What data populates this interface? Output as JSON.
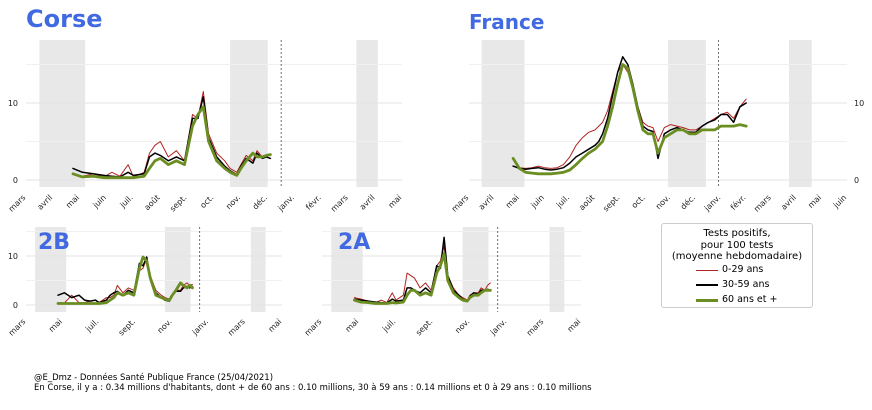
{
  "months": [
    "mars",
    "avril",
    "mai",
    "juin",
    "juil.",
    "août",
    "sept.",
    "oct.",
    "nov.",
    "déc.",
    "janv.",
    "févr.",
    "mars",
    "avril",
    "mai",
    "juin"
  ],
  "months_short": [
    "mars",
    "mai",
    "juil.",
    "sept.",
    "nov.",
    "janv.",
    "mars",
    "mai"
  ],
  "colors": {
    "c0_29": "#b22222",
    "c30_59": "#000000",
    "c60": "#6b8e23",
    "shade": "#e8e8e8",
    "title": "#4169e1"
  },
  "legend": {
    "title_lines": [
      "Tests positifs,",
      "pour 100 tests",
      "(moyenne hebdomadaire)"
    ],
    "items": [
      "0-29 ans",
      "30-59 ans",
      "60 ans et +"
    ]
  },
  "footer": {
    "line1": "@E_Dmz - Données Santé Publique France (25/04/2021)",
    "line2": "En Corse, il y a : 0.34 millions d'habitants, dont + de 60 ans : 0.10 millions, 30 à 59 ans : 0.14 millions et 0 à 29 ans : 0.10 millions"
  },
  "chart_data": [
    {
      "type": "line",
      "title": "Corse",
      "ylim": [
        0,
        18
      ],
      "yticks": [
        0,
        10
      ],
      "series": [
        {
          "name": "0-29 ans",
          "x": [
            3.5,
            4.2,
            5.0,
            5.8,
            6.4,
            7.0,
            7.6,
            8.0,
            8.8,
            9.2,
            9.6,
            10.0,
            10.6,
            11.2,
            11.8,
            12.4,
            12.8,
            13.2,
            13.6,
            14.2,
            14.8,
            15.2,
            15.7,
            16.0,
            16.4,
            16.9,
            17.2,
            17.6,
            17.9,
            18.2
          ],
          "y": [
            0.8,
            0.5,
            0.8,
            0.4,
            1.0,
            0.5,
            2.0,
            0.4,
            1.0,
            3.5,
            4.5,
            5.0,
            3.0,
            3.8,
            2.5,
            8.5,
            8.0,
            11.5,
            6.0,
            3.5,
            2.5,
            1.5,
            1.0,
            2.0,
            3.2,
            2.5,
            3.8,
            3.0,
            3.0,
            2.8
          ]
        },
        {
          "name": "30-59 ans",
          "x": [
            3.5,
            4.2,
            5.0,
            5.8,
            6.4,
            7.0,
            7.6,
            8.0,
            8.8,
            9.2,
            9.6,
            10.0,
            10.6,
            11.2,
            11.8,
            12.4,
            12.8,
            13.2,
            13.6,
            14.2,
            14.8,
            15.2,
            15.7,
            16.0,
            16.4,
            16.9,
            17.2,
            17.6,
            17.9,
            18.2
          ],
          "y": [
            1.5,
            1.0,
            0.8,
            0.6,
            0.5,
            0.4,
            1.0,
            0.6,
            0.8,
            3.0,
            3.5,
            3.2,
            2.5,
            3.0,
            2.5,
            8.0,
            8.0,
            10.8,
            5.5,
            3.0,
            1.8,
            1.2,
            0.7,
            1.8,
            2.8,
            2.2,
            3.5,
            2.8,
            3.0,
            2.8
          ]
        },
        {
          "name": "60 ans et +",
          "x": [
            3.5,
            4.2,
            5.0,
            5.8,
            6.4,
            7.0,
            7.6,
            8.0,
            8.8,
            9.2,
            9.6,
            10.0,
            10.6,
            11.2,
            11.8,
            12.4,
            12.8,
            13.2,
            13.6,
            14.2,
            14.8,
            15.2,
            15.7,
            16.0,
            16.4,
            16.9,
            17.2,
            17.6,
            17.9,
            18.2
          ],
          "y": [
            0.8,
            0.4,
            0.5,
            0.3,
            0.3,
            0.3,
            0.3,
            0.3,
            0.5,
            1.5,
            2.5,
            2.8,
            2.0,
            2.5,
            2.0,
            7.0,
            8.5,
            9.5,
            5.0,
            2.5,
            1.5,
            1.0,
            0.6,
            1.5,
            2.5,
            3.5,
            3.0,
            3.0,
            3.2,
            3.3
          ]
        }
      ]
    },
    {
      "type": "line",
      "title": "France",
      "ylim": [
        0,
        18
      ],
      "yticks": [
        0,
        10
      ],
      "series": [
        {
          "name": "0-29 ans",
          "x": [
            3.5,
            4.0,
            4.5,
            5.0,
            5.5,
            6.0,
            6.5,
            7.0,
            7.5,
            8.0,
            8.5,
            9.0,
            9.5,
            10.0,
            10.3,
            10.6,
            11.0,
            11.4,
            11.8,
            12.2,
            12.6,
            13.0,
            13.4,
            13.8,
            14.2,
            14.6,
            15.0,
            15.5,
            16.0,
            16.5,
            17.0,
            17.5,
            18.0,
            18.5,
            19.0,
            19.5,
            20.0,
            20.5,
            21.0,
            21.5,
            22.0
          ],
          "y": [
            1.8,
            1.6,
            1.5,
            1.6,
            1.8,
            1.6,
            1.5,
            1.6,
            2.0,
            3.0,
            4.5,
            5.5,
            6.2,
            6.5,
            7.0,
            7.5,
            9.0,
            11.5,
            14.0,
            15.0,
            14.0,
            12.0,
            9.5,
            7.5,
            7.0,
            6.8,
            5.0,
            6.8,
            7.2,
            7.0,
            6.8,
            6.5,
            6.5,
            7.0,
            7.5,
            8.0,
            8.5,
            8.8,
            8.0,
            9.5,
            10.5
          ]
        },
        {
          "name": "30-59 ans",
          "x": [
            3.5,
            4.0,
            4.5,
            5.0,
            5.5,
            6.0,
            6.5,
            7.0,
            7.5,
            8.0,
            8.5,
            9.0,
            9.5,
            10.0,
            10.3,
            10.6,
            11.0,
            11.4,
            11.8,
            12.2,
            12.6,
            13.0,
            13.4,
            13.8,
            14.2,
            14.6,
            15.0,
            15.5,
            16.0,
            16.5,
            17.0,
            17.5,
            18.0,
            18.5,
            19.0,
            19.5,
            20.0,
            20.5,
            21.0,
            21.5,
            22.0
          ],
          "y": [
            1.8,
            1.5,
            1.4,
            1.5,
            1.6,
            1.4,
            1.3,
            1.4,
            1.6,
            2.2,
            3.0,
            3.5,
            4.0,
            4.5,
            5.0,
            6.0,
            8.0,
            11.0,
            14.0,
            16.0,
            15.0,
            12.5,
            9.5,
            7.0,
            6.5,
            6.3,
            2.8,
            6.0,
            6.5,
            6.8,
            6.5,
            6.2,
            6.2,
            7.0,
            7.5,
            7.8,
            8.5,
            8.5,
            7.5,
            9.5,
            10.0
          ]
        },
        {
          "name": "60 ans et +",
          "x": [
            3.5,
            4.0,
            4.5,
            5.0,
            5.5,
            6.0,
            6.5,
            7.0,
            7.5,
            8.0,
            8.5,
            9.0,
            9.5,
            10.0,
            10.3,
            10.6,
            11.0,
            11.4,
            11.8,
            12.2,
            12.6,
            13.0,
            13.4,
            13.8,
            14.2,
            14.6,
            15.0,
            15.5,
            16.0,
            16.5,
            17.0,
            17.5,
            18.0,
            18.5,
            19.0,
            19.5,
            20.0,
            20.5,
            21.0,
            21.5,
            22.0
          ],
          "y": [
            2.8,
            1.5,
            1.0,
            0.9,
            0.8,
            0.8,
            0.8,
            0.9,
            1.0,
            1.3,
            2.0,
            2.8,
            3.5,
            4.0,
            4.5,
            5.0,
            7.0,
            9.5,
            12.5,
            15.0,
            14.5,
            12.0,
            9.0,
            6.5,
            6.0,
            6.0,
            3.5,
            5.5,
            6.0,
            6.5,
            6.5,
            6.0,
            6.0,
            6.5,
            6.5,
            6.5,
            7.0,
            7.0,
            7.0,
            7.2,
            7.0
          ]
        }
      ]
    },
    {
      "type": "line",
      "title": "2B",
      "ylim": [
        0,
        14
      ],
      "yticks": [
        0,
        10
      ],
      "series": [
        {
          "name": "0-29 ans",
          "x": [
            3.5,
            4.2,
            5.0,
            5.8,
            6.4,
            7.0,
            7.6,
            8.0,
            8.8,
            9.2,
            9.6,
            10.0,
            10.6,
            11.2,
            11.8,
            12.4,
            12.8,
            13.2,
            13.6,
            14.2,
            14.8,
            15.2,
            15.7,
            16.0,
            16.4,
            16.9,
            17.2,
            17.6,
            17.9,
            18.2
          ],
          "y": [
            0.5,
            0.4,
            2.0,
            0.5,
            0.5,
            0.8,
            1.0,
            0.5,
            1.5,
            1.5,
            2.0,
            4.0,
            2.5,
            3.5,
            3.0,
            7.0,
            7.5,
            9.5,
            6.0,
            3.0,
            2.0,
            1.5,
            1.2,
            2.0,
            3.0,
            3.0,
            4.0,
            4.5,
            4.0,
            4.2
          ]
        },
        {
          "name": "30-59 ans",
          "x": [
            3.5,
            4.2,
            5.0,
            5.8,
            6.4,
            7.0,
            7.6,
            8.0,
            8.8,
            9.2,
            9.6,
            10.0,
            10.6,
            11.2,
            11.8,
            12.4,
            12.8,
            13.2,
            13.6,
            14.2,
            14.8,
            15.2,
            15.7,
            16.0,
            16.4,
            16.9,
            17.2,
            17.6,
            17.9,
            18.2
          ],
          "y": [
            2.0,
            2.5,
            1.5,
            2.0,
            1.0,
            0.8,
            1.0,
            0.5,
            1.0,
            2.0,
            2.5,
            2.8,
            2.0,
            3.0,
            2.5,
            8.5,
            8.0,
            9.8,
            5.5,
            2.5,
            1.5,
            1.0,
            0.8,
            2.0,
            2.8,
            2.8,
            3.5,
            3.8,
            3.5,
            3.8
          ]
        },
        {
          "name": "60 ans et +",
          "x": [
            3.5,
            4.2,
            5.0,
            5.8,
            6.4,
            7.0,
            7.6,
            8.0,
            8.8,
            9.2,
            9.6,
            10.0,
            10.6,
            11.2,
            11.8,
            12.4,
            12.8,
            13.2,
            13.6,
            14.2,
            14.8,
            15.2,
            15.7,
            16.0,
            16.4,
            16.9,
            17.2,
            17.6,
            17.9,
            18.2
          ],
          "y": [
            0.3,
            0.3,
            0.3,
            0.3,
            0.3,
            0.3,
            0.3,
            0.3,
            0.5,
            1.0,
            1.5,
            2.5,
            2.0,
            2.5,
            2.0,
            7.5,
            9.8,
            9.0,
            5.5,
            2.0,
            1.5,
            1.2,
            1.0,
            2.0,
            3.0,
            4.5,
            4.0,
            3.5,
            4.0,
            3.5
          ]
        }
      ]
    },
    {
      "type": "line",
      "title": "2A",
      "ylim": [
        0,
        14
      ],
      "yticks": [
        0,
        10
      ],
      "series": [
        {
          "name": "0-29 ans",
          "x": [
            3.5,
            4.2,
            5.0,
            5.8,
            6.4,
            7.0,
            7.6,
            8.0,
            8.8,
            9.2,
            9.6,
            10.0,
            10.6,
            11.2,
            11.8,
            12.4,
            12.8,
            13.2,
            13.6,
            14.2,
            14.8,
            15.2,
            15.7,
            16.0,
            16.4,
            16.9,
            17.2,
            17.6,
            17.9,
            18.2
          ],
          "y": [
            1.5,
            1.2,
            0.8,
            0.5,
            1.0,
            0.5,
            2.5,
            1.0,
            2.0,
            6.5,
            6.0,
            5.5,
            3.5,
            4.5,
            3.0,
            8.0,
            9.0,
            12.0,
            6.0,
            3.5,
            2.0,
            1.5,
            1.0,
            2.0,
            2.5,
            2.5,
            3.5,
            3.0,
            4.0,
            4.5
          ]
        },
        {
          "name": "30-59 ans",
          "x": [
            3.5,
            4.2,
            5.0,
            5.8,
            6.4,
            7.0,
            7.6,
            8.0,
            8.8,
            9.2,
            9.6,
            10.0,
            10.6,
            11.2,
            11.8,
            12.4,
            12.8,
            13.2,
            13.6,
            14.2,
            14.8,
            15.2,
            15.7,
            16.0,
            16.4,
            16.9,
            17.2,
            17.6,
            17.9,
            18.2
          ],
          "y": [
            1.2,
            1.0,
            0.8,
            0.6,
            0.5,
            0.4,
            1.2,
            0.8,
            1.0,
            3.5,
            3.5,
            3.0,
            2.5,
            3.5,
            2.5,
            8.0,
            7.5,
            13.8,
            6.0,
            3.0,
            2.0,
            1.2,
            0.8,
            1.8,
            2.5,
            2.2,
            3.0,
            3.0,
            3.2,
            3.0
          ]
        },
        {
          "name": "60 ans et +",
          "x": [
            3.5,
            4.2,
            5.0,
            5.8,
            6.4,
            7.0,
            7.6,
            8.0,
            8.8,
            9.2,
            9.6,
            10.0,
            10.6,
            11.2,
            11.8,
            12.4,
            12.8,
            13.2,
            13.6,
            14.2,
            14.8,
            15.2,
            15.7,
            16.0,
            16.4,
            16.9,
            17.2,
            17.6,
            17.9,
            18.2
          ],
          "y": [
            1.0,
            0.6,
            0.5,
            0.3,
            0.3,
            0.3,
            0.5,
            0.4,
            0.6,
            2.0,
            3.0,
            3.0,
            2.0,
            2.5,
            2.0,
            6.5,
            8.0,
            10.5,
            5.0,
            2.5,
            1.5,
            1.0,
            0.8,
            1.5,
            2.0,
            2.0,
            2.5,
            3.0,
            3.0,
            3.0
          ]
        }
      ]
    }
  ]
}
